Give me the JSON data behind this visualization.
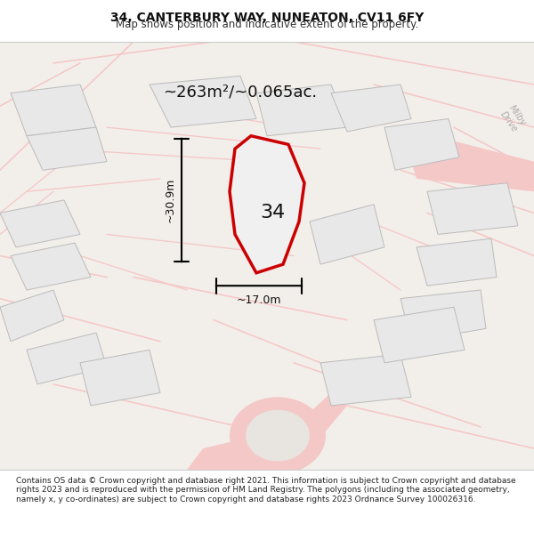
{
  "title": "34, CANTERBURY WAY, NUNEATON, CV11 6FY",
  "subtitle": "Map shows position and indicative extent of the property.",
  "area_text": "~263m²/~0.065ac.",
  "number_label": "34",
  "dim_height": "~30.9m",
  "dim_width": "~17.0m",
  "street_label": "Milby\nDrive",
  "footer_text": "Contains OS data © Crown copyright and database right 2021. This information is subject to Crown copyright and database rights 2023 and is reproduced with the permission of HM Land Registry. The polygons (including the associated geometry, namely x, y co-ordinates) are subject to Crown copyright and database rights 2023 Ordnance Survey 100026316.",
  "bg_color": "#f0eeeb",
  "map_bg": "#f0eeeb",
  "plot_color": "#cc0000",
  "plot_fill": "#f5f5f5",
  "road_color": "#f5c8c8",
  "building_fill": "#e8e8e8",
  "building_edge": "#bbbbbb",
  "header_bg": "#ffffff",
  "footer_bg": "#ffffff",
  "water_color": "#c8dde8"
}
